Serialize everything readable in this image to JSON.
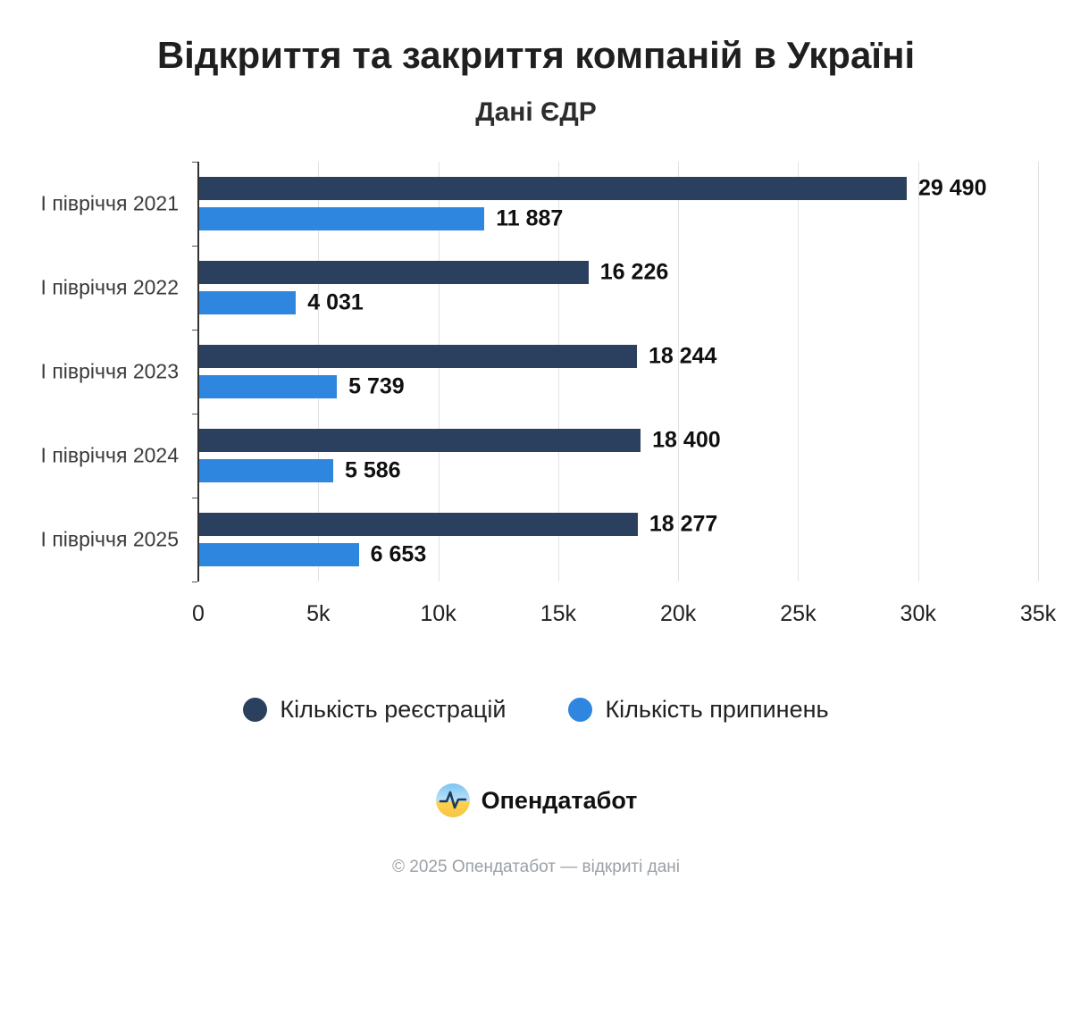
{
  "header": {
    "title": "Відкриття та закриття компаній в Україні",
    "subtitle": "Дані ЄДР"
  },
  "chart_data": {
    "type": "bar",
    "orientation": "horizontal",
    "title": "Відкриття та закриття компаній в Україні",
    "subtitle": "Дані ЄДР",
    "categories": [
      "І півріччя 2021",
      "І півріччя 2022",
      "І півріччя 2023",
      "І півріччя 2024",
      "І півріччя 2025"
    ],
    "series": [
      {
        "name": "Кількість реєстрацій",
        "color": "#2b405e",
        "values": [
          29490,
          16226,
          18244,
          18400,
          18277
        ],
        "labels": [
          "29 490",
          "16 226",
          "18 244",
          "18 400",
          "18 277"
        ]
      },
      {
        "name": "Кількість припинень",
        "color": "#2e86de",
        "values": [
          11887,
          4031,
          5739,
          5586,
          6653
        ],
        "labels": [
          "11 887",
          "4 031",
          "5 739",
          "5 586",
          "6 653"
        ]
      }
    ],
    "xlim": [
      0,
      35000
    ],
    "xticks": [
      0,
      5000,
      10000,
      15000,
      20000,
      25000,
      30000,
      35000
    ],
    "xtick_labels": [
      "0",
      "5k",
      "10k",
      "15k",
      "20k",
      "25k",
      "30k",
      "35k"
    ],
    "grid": true,
    "legend_position": "bottom"
  },
  "footer": {
    "brand": "Опендатабот",
    "copyright": "© 2025 Опендатабот — відкриті дані"
  }
}
